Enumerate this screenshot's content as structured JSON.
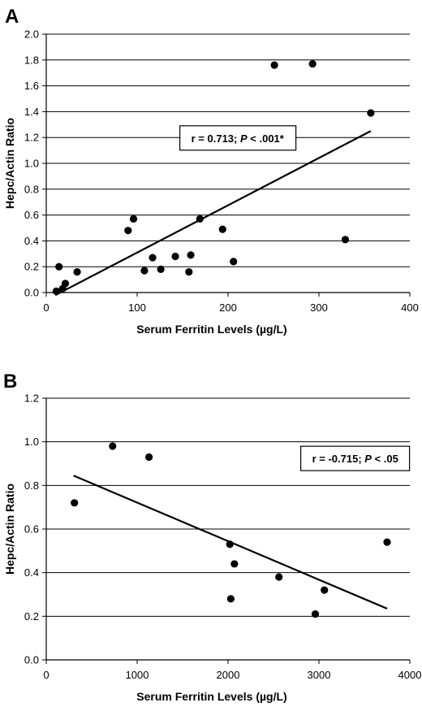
{
  "chart_data": [
    {
      "type": "scatter",
      "panel_label": "A",
      "xlabel": "Serum Ferritin Levels (µg/L)",
      "ylabel": "Hepc/Actin Ratio",
      "xlim": [
        0,
        400
      ],
      "ylim": [
        0,
        2.0
      ],
      "xticks": [
        0,
        100,
        200,
        300,
        400
      ],
      "yticks": [
        0.0,
        0.2,
        0.4,
        0.6,
        0.8,
        1.0,
        1.2,
        1.4,
        1.6,
        1.8,
        2.0
      ],
      "ytick_labels": [
        "0.0",
        "0.2",
        "0.4",
        "0.6",
        "0.8",
        "1.0",
        "1.2",
        "1.4",
        "1.6",
        "1.8",
        "2.0"
      ],
      "grid": "horizontal",
      "points": [
        {
          "x": 11,
          "y": 0.01
        },
        {
          "x": 14,
          "y": 0.2
        },
        {
          "x": 18,
          "y": 0.03
        },
        {
          "x": 21,
          "y": 0.07
        },
        {
          "x": 34,
          "y": 0.16
        },
        {
          "x": 90,
          "y": 0.48
        },
        {
          "x": 96,
          "y": 0.57
        },
        {
          "x": 108,
          "y": 0.17
        },
        {
          "x": 117,
          "y": 0.27
        },
        {
          "x": 126,
          "y": 0.18
        },
        {
          "x": 142,
          "y": 0.28
        },
        {
          "x": 157,
          "y": 0.16
        },
        {
          "x": 159,
          "y": 0.29
        },
        {
          "x": 169,
          "y": 0.57
        },
        {
          "x": 194,
          "y": 0.49
        },
        {
          "x": 206,
          "y": 0.24
        },
        {
          "x": 251,
          "y": 1.76
        },
        {
          "x": 293,
          "y": 1.77
        },
        {
          "x": 329,
          "y": 0.41
        },
        {
          "x": 357,
          "y": 1.39
        }
      ],
      "trendline": {
        "x": [
          10,
          357
        ],
        "y": [
          -0.02,
          1.25
        ]
      },
      "annotation": {
        "prefix": "r = 0.713; ",
        "italic": "P",
        "suffix": " < .001*",
        "anchor": {
          "x": 147,
          "y": 1.19
        }
      }
    },
    {
      "type": "scatter",
      "panel_label": "B",
      "xlabel": "Serum Ferritin Levels (µg/L)",
      "ylabel": "Hepc/Actin Ratio",
      "xlim": [
        0,
        4000
      ],
      "ylim": [
        0,
        1.2
      ],
      "xticks": [
        0,
        1000,
        2000,
        3000,
        4000
      ],
      "yticks": [
        0.0,
        0.2,
        0.4,
        0.6,
        0.8,
        1.0,
        1.2
      ],
      "ytick_labels": [
        "0.0",
        "0.2",
        "0.4",
        "0.6",
        "0.8",
        "1.0",
        "1.2"
      ],
      "grid": "horizontal",
      "points": [
        {
          "x": 310,
          "y": 0.72
        },
        {
          "x": 730,
          "y": 0.98
        },
        {
          "x": 1130,
          "y": 0.93
        },
        {
          "x": 2020,
          "y": 0.53
        },
        {
          "x": 2030,
          "y": 0.28
        },
        {
          "x": 2070,
          "y": 0.44
        },
        {
          "x": 2560,
          "y": 0.38
        },
        {
          "x": 2960,
          "y": 0.21
        },
        {
          "x": 3060,
          "y": 0.32
        },
        {
          "x": 3750,
          "y": 0.54
        }
      ],
      "trendline": {
        "x": [
          300,
          3750
        ],
        "y": [
          0.845,
          0.235
        ]
      },
      "annotation": {
        "prefix": "r = -0.715; ",
        "italic": "P",
        "suffix": " < .05",
        "anchor": {
          "x": 2800,
          "y": 0.92
        }
      }
    }
  ]
}
